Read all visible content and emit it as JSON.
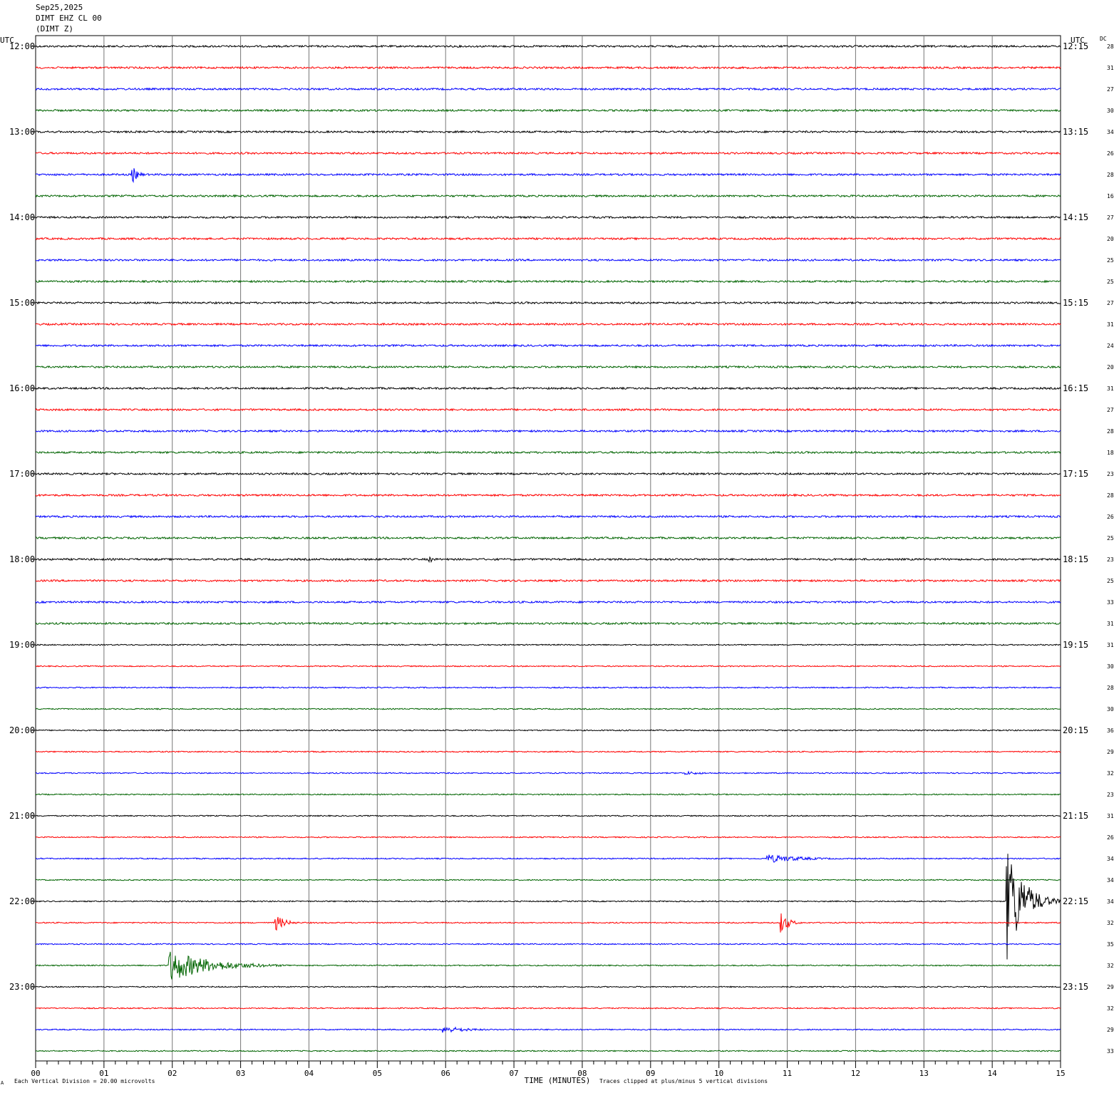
{
  "header": {
    "date": "Sep25,2025",
    "station": "DIMT EHZ CL 00",
    "channel": "(DIMT Z)"
  },
  "footer": {
    "vertical_division": "Each Vertical Division =   20.00 microvolts",
    "clipping": "Traces clipped at plus/minus 5 vertical divisions",
    "mark": "A"
  },
  "chart_data": {
    "type": "line",
    "title": "",
    "xlabel": "TIME (MINUTES)",
    "ylabel": "",
    "xlim": [
      0,
      15
    ],
    "x_ticks": [
      "00",
      "01",
      "02",
      "03",
      "04",
      "05",
      "06",
      "07",
      "08",
      "09",
      "10",
      "11",
      "12",
      "13",
      "14",
      "15"
    ],
    "left_axis_title": "UTC",
    "right_axis_title": "UTC",
    "dc_label": "DC",
    "left_hour_labels": [
      "12:00",
      "13:00",
      "14:00",
      "15:00",
      "16:00",
      "17:00",
      "18:00",
      "19:00",
      "20:00",
      "21:00",
      "22:00",
      "23:00"
    ],
    "right_hour_labels": [
      "12:15",
      "13:15",
      "14:15",
      "15:15",
      "16:15",
      "17:15",
      "18:15",
      "19:15",
      "20:15",
      "21:15",
      "22:15",
      "23:15"
    ],
    "dc_offsets": [
      28,
      31,
      27,
      30,
      34,
      26,
      28,
      16,
      27,
      20,
      25,
      25,
      27,
      31,
      24,
      20,
      31,
      27,
      28,
      18,
      23,
      28,
      26,
      25,
      23,
      25,
      33,
      31,
      31,
      30,
      28,
      30,
      36,
      29,
      32,
      23,
      31,
      26,
      34,
      34,
      34,
      32,
      35,
      32,
      29,
      32,
      29,
      33
    ],
    "trace_colors": [
      "#000000",
      "#ff0000",
      "#0000ff",
      "#006400"
    ],
    "grid": true,
    "events": [
      {
        "row": 6,
        "start_min": 1.4,
        "duration_min": 0.3,
        "amplitude_div": 0.8
      },
      {
        "row": 24,
        "start_min": 5.75,
        "duration_min": 0.3,
        "amplitude_div": 0.3
      },
      {
        "row": 34,
        "start_min": 9.5,
        "duration_min": 1.2,
        "amplitude_div": 0.15
      },
      {
        "row": 38,
        "start_min": 10.7,
        "duration_min": 1.8,
        "amplitude_div": 0.35
      },
      {
        "row": 40,
        "start_min": 14.2,
        "duration_min": 0.8,
        "amplitude_div": 5.0
      },
      {
        "row": 41,
        "start_min": 3.5,
        "duration_min": 0.5,
        "amplitude_div": 0.7
      },
      {
        "row": 41,
        "start_min": 10.9,
        "duration_min": 0.4,
        "amplitude_div": 0.9
      },
      {
        "row": 43,
        "start_min": 1.95,
        "duration_min": 2.0,
        "amplitude_div": 1.3
      },
      {
        "row": 46,
        "start_min": 5.95,
        "duration_min": 1.3,
        "amplitude_div": 0.3
      }
    ]
  }
}
